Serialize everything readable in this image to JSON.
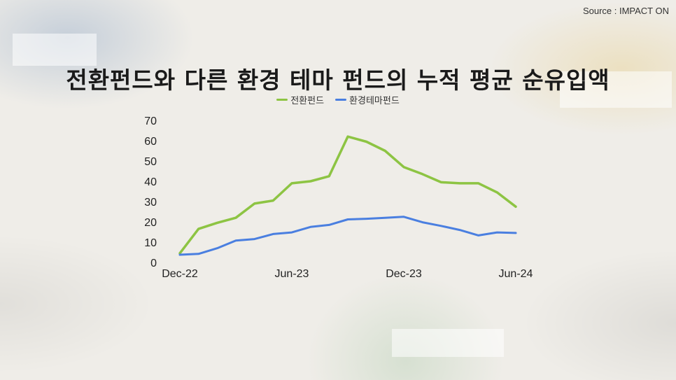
{
  "source": "Source : IMPACT ON",
  "colors": {
    "transition": "#8dc443",
    "environment": "#4a7fe0"
  },
  "chart_data": {
    "type": "line",
    "title": "전환펀드와 다른 환경 테마 펀드의 누적 평균 순유입액",
    "xlabel": "",
    "ylabel": "",
    "x": [
      "2022-12",
      "2023-01",
      "2023-02",
      "2023-03",
      "2023-04",
      "2023-05",
      "2023-06",
      "2023-07",
      "2023-08",
      "2023-09",
      "2023-10",
      "2023-11",
      "2023-12",
      "2024-01",
      "2024-02",
      "2024-03",
      "2024-04",
      "2024-05",
      "2024-06"
    ],
    "x_tick_labels": [
      "Dec-22",
      "Jun-23",
      "Dec-23",
      "Jun-24"
    ],
    "y_ticks": [
      0,
      10,
      20,
      30,
      40,
      50,
      60,
      70
    ],
    "ylim": [
      0,
      70
    ],
    "legend_position": "top-center",
    "series": [
      {
        "name": "전환펀드",
        "values": [
          4.5,
          16.5,
          19.5,
          22,
          29,
          30.5,
          39,
          40,
          42.5,
          62,
          59.5,
          55,
          47,
          43.5,
          39.5,
          39,
          39,
          34.5,
          27.5
        ]
      },
      {
        "name": "환경테마펀드",
        "values": [
          3.8,
          4.2,
          7,
          10.8,
          11.5,
          14,
          14.8,
          17.5,
          18.5,
          21.2,
          21.5,
          22,
          22.5,
          19.8,
          18,
          16,
          13.3,
          14.8,
          14.5
        ]
      }
    ]
  }
}
